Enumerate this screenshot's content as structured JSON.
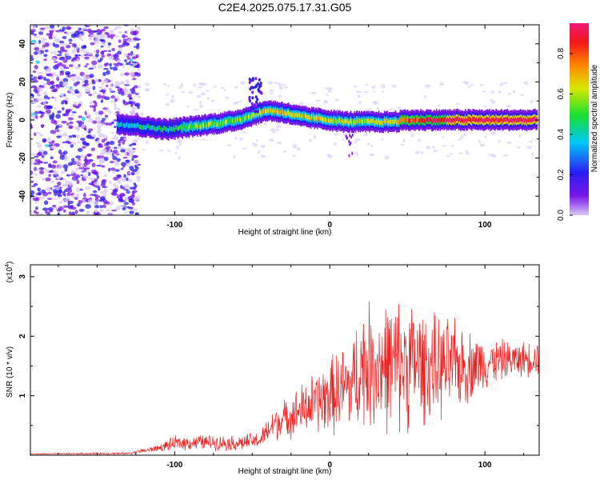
{
  "title": "C2E4.2025.075.17.31.G05",
  "chart_data": [
    {
      "type": "heatmap",
      "xlabel": "Height of straight line (km)",
      "ylabel": "Frequency (Hz)",
      "xlim": [
        -193,
        135
      ],
      "ylim": [
        -50,
        50
      ],
      "x_ticks": [
        -100,
        0,
        100
      ],
      "x_tick_labels": [
        "-100",
        "0",
        "100"
      ],
      "y_ticks": [
        -40,
        -20,
        0,
        20,
        40
      ],
      "y_tick_labels": [
        "-40",
        "-20",
        "0",
        "20",
        "40"
      ],
      "colorbar": {
        "label": "Normalized spectral amplitude",
        "range": [
          0,
          0.95
        ],
        "ticks": [
          0,
          0.2,
          0.4,
          0.6,
          0.8
        ],
        "tick_labels": [
          "0.0",
          "0.2",
          "0.4",
          "0.6",
          "0.8"
        ],
        "colors": [
          "#d8c8f8",
          "#7a18e8",
          "#2a1cf0",
          "#00c8f8",
          "#18e030",
          "#d8e800",
          "#ff8800",
          "#f01818",
          "#f01878"
        ]
      },
      "ridge": {
        "x": [
          -135,
          -125,
          -115,
          -105,
          -95,
          -85,
          -75,
          -65,
          -55,
          -48,
          -40,
          -30,
          -20,
          -10,
          0,
          10,
          20,
          30,
          40,
          50,
          60,
          70,
          80,
          90,
          100,
          110,
          120,
          130
        ],
        "frequency_hz": [
          -2,
          -3,
          -4,
          -5,
          -4,
          -3,
          -2,
          -1,
          1,
          3,
          5,
          4,
          2,
          1,
          0,
          -1,
          -1,
          -1,
          -1,
          0,
          0,
          0,
          0,
          0,
          0,
          0,
          0,
          0
        ],
        "amplitude": [
          0.35,
          0.4,
          0.45,
          0.45,
          0.5,
          0.5,
          0.55,
          0.55,
          0.55,
          0.6,
          0.65,
          0.65,
          0.6,
          0.6,
          0.6,
          0.6,
          0.55,
          0.6,
          0.65,
          0.75,
          0.85,
          0.88,
          0.9,
          0.9,
          0.9,
          0.9,
          0.9,
          0.9
        ]
      }
    },
    {
      "type": "line",
      "xlabel": "Height of straight line (km)",
      "ylabel": "SNR (10 * v/v)",
      "y_multiplier": "(x10",
      "y_multiplier_exp": "4",
      "xlim": [
        -193,
        135
      ],
      "ylim": [
        0,
        3.2
      ],
      "x_ticks": [
        -100,
        0,
        100
      ],
      "x_tick_labels": [
        "-100",
        "0",
        "100"
      ],
      "y_ticks": [
        1,
        2,
        3
      ],
      "y_tick_labels": [
        "1",
        "2",
        "3"
      ],
      "color": "#ee2020",
      "envelope": {
        "x": [
          -193,
          -130,
          -110,
          -100,
          -80,
          -60,
          -45,
          -35,
          -30,
          -15,
          0,
          15,
          20,
          30,
          40,
          50,
          55,
          60,
          70,
          80,
          90,
          100,
          110,
          120,
          135
        ],
        "mean": [
          0.02,
          0.03,
          0.12,
          0.2,
          0.22,
          0.2,
          0.25,
          0.55,
          0.6,
          0.8,
          1.0,
          1.2,
          1.5,
          1.5,
          1.5,
          1.55,
          1.55,
          1.5,
          1.45,
          1.5,
          1.5,
          1.55,
          1.6,
          1.6,
          1.65
        ],
        "spread": [
          0.01,
          0.02,
          0.07,
          0.14,
          0.15,
          0.15,
          0.17,
          0.35,
          0.35,
          0.55,
          0.75,
          0.95,
          1.2,
          1.25,
          1.3,
          1.3,
          1.25,
          1.1,
          1.0,
          0.9,
          0.7,
          0.5,
          0.4,
          0.35,
          0.35
        ]
      }
    }
  ]
}
